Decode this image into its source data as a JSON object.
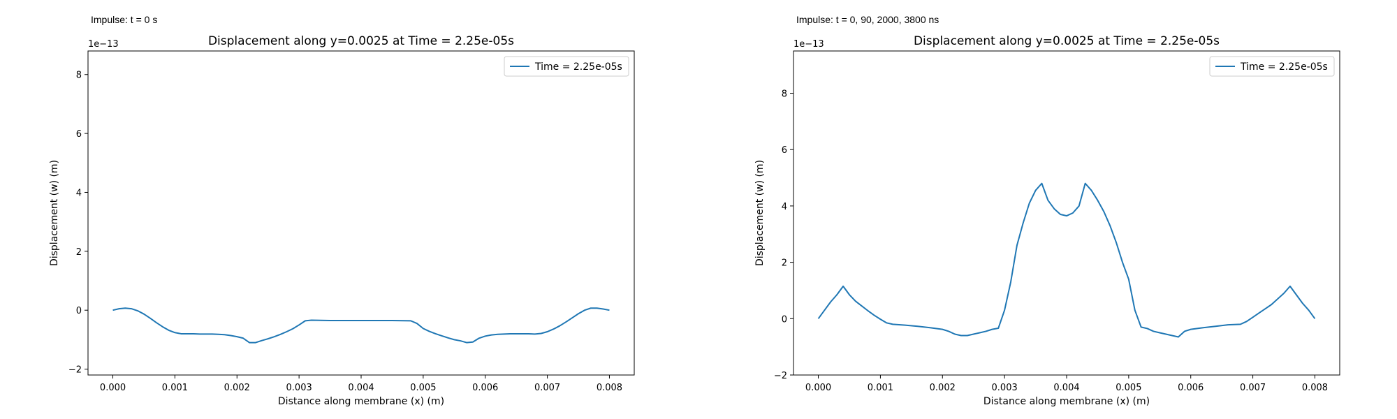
{
  "chart_data": [
    {
      "type": "line",
      "note": "Impulse: t = 0 s",
      "title": "Displacement along y=0.0025 at Time = 2.25e-05s",
      "xlabel": "Distance along membrane (x) (m)",
      "ylabel": "Displacement (w) (m)",
      "offset_text": "1e−13",
      "xlim": [
        -0.0004,
        0.0084
      ],
      "ylim": [
        -2.2,
        8.8
      ],
      "x_ticks": [
        "0.000",
        "0.001",
        "0.002",
        "0.003",
        "0.004",
        "0.005",
        "0.006",
        "0.007",
        "0.008"
      ],
      "y_ticks": [
        "−2",
        "0",
        "2",
        "4",
        "6",
        "8"
      ],
      "grid": false,
      "legend_position": "top-right",
      "series": [
        {
          "name": "Time = 2.25e-05s",
          "color": "#1f77b4",
          "x": [
            0.0,
            0.0001,
            0.0002,
            0.0003,
            0.0004,
            0.0005,
            0.0006,
            0.0007,
            0.0008,
            0.0009,
            0.001,
            0.0011,
            0.0012,
            0.0013,
            0.0014,
            0.0015,
            0.0016,
            0.0017,
            0.0018,
            0.0019,
            0.002,
            0.0021,
            0.0022,
            0.0023,
            0.0024,
            0.0025,
            0.0026,
            0.0027,
            0.0028,
            0.0029,
            0.003,
            0.0031,
            0.0032,
            0.0035,
            0.004,
            0.0045,
            0.0048,
            0.0049,
            0.005,
            0.0051,
            0.0052,
            0.0053,
            0.0054,
            0.0055,
            0.0056,
            0.0057,
            0.0058,
            0.0059,
            0.006,
            0.0061,
            0.0062,
            0.0063,
            0.0064,
            0.0065,
            0.0066,
            0.0067,
            0.0068,
            0.0069,
            0.007,
            0.0071,
            0.0072,
            0.0073,
            0.0074,
            0.0075,
            0.0076,
            0.0077,
            0.0078,
            0.0079,
            0.008
          ],
          "y": [
            0.0,
            0.05,
            0.07,
            0.05,
            -0.02,
            -0.13,
            -0.27,
            -0.42,
            -0.56,
            -0.68,
            -0.76,
            -0.8,
            -0.8,
            -0.8,
            -0.81,
            -0.81,
            -0.81,
            -0.82,
            -0.83,
            -0.86,
            -0.9,
            -0.95,
            -1.1,
            -1.1,
            -1.03,
            -0.97,
            -0.9,
            -0.82,
            -0.73,
            -0.63,
            -0.5,
            -0.36,
            -0.34,
            -0.35,
            -0.35,
            -0.35,
            -0.36,
            -0.45,
            -0.62,
            -0.72,
            -0.8,
            -0.87,
            -0.94,
            -1.0,
            -1.04,
            -1.1,
            -1.08,
            -0.95,
            -0.88,
            -0.84,
            -0.82,
            -0.81,
            -0.8,
            -0.8,
            -0.8,
            -0.8,
            -0.81,
            -0.79,
            -0.73,
            -0.64,
            -0.53,
            -0.4,
            -0.26,
            -0.12,
            0.0,
            0.07,
            0.07,
            0.04,
            0.0
          ]
        }
      ]
    },
    {
      "type": "line",
      "note": "Impulse: t = 0, 90, 2000, 3800 ns",
      "title": "Displacement along y=0.0025 at Time = 2.25e-05s",
      "xlabel": "Distance along membrane (x) (m)",
      "ylabel": "Displacement (w) (m)",
      "offset_text": "1e−13",
      "xlim": [
        -0.0004,
        0.0084
      ],
      "ylim": [
        -2.0,
        9.5
      ],
      "x_ticks": [
        "0.000",
        "0.001",
        "0.002",
        "0.003",
        "0.004",
        "0.005",
        "0.006",
        "0.007",
        "0.008"
      ],
      "y_ticks": [
        "−2",
        "0",
        "2",
        "4",
        "6",
        "8"
      ],
      "grid": false,
      "legend_position": "top-right",
      "series": [
        {
          "name": "Time = 2.25e-05s",
          "color": "#1f77b4",
          "x": [
            0.0,
            0.0001,
            0.0002,
            0.0003,
            0.0004,
            0.0005,
            0.0006,
            0.0007,
            0.0008,
            0.0009,
            0.001,
            0.0011,
            0.0012,
            0.0014,
            0.0016,
            0.0018,
            0.002,
            0.0021,
            0.0022,
            0.0023,
            0.0024,
            0.0025,
            0.0026,
            0.0027,
            0.0028,
            0.0029,
            0.003,
            0.0031,
            0.0032,
            0.0033,
            0.0034,
            0.0035,
            0.0036,
            0.0037,
            0.0038,
            0.0039,
            0.004,
            0.0041,
            0.0042,
            0.0043,
            0.0044,
            0.0045,
            0.0046,
            0.0047,
            0.0048,
            0.0049,
            0.005,
            0.0051,
            0.0052,
            0.0053,
            0.0054,
            0.0055,
            0.0056,
            0.0057,
            0.0058,
            0.0059,
            0.006,
            0.0062,
            0.0064,
            0.0066,
            0.0068,
            0.0069,
            0.007,
            0.0071,
            0.0072,
            0.0073,
            0.0074,
            0.0075,
            0.0076,
            0.0077,
            0.0078,
            0.0079,
            0.008
          ],
          "y": [
            0.0,
            0.3,
            0.6,
            0.85,
            1.15,
            0.85,
            0.62,
            0.45,
            0.28,
            0.12,
            -0.02,
            -0.15,
            -0.2,
            -0.23,
            -0.27,
            -0.32,
            -0.38,
            -0.45,
            -0.55,
            -0.6,
            -0.6,
            -0.55,
            -0.5,
            -0.45,
            -0.38,
            -0.34,
            0.3,
            1.3,
            2.6,
            3.4,
            4.1,
            4.55,
            4.8,
            4.2,
            3.9,
            3.7,
            3.65,
            3.75,
            4.0,
            4.8,
            4.55,
            4.2,
            3.8,
            3.3,
            2.7,
            2.0,
            1.4,
            0.3,
            -0.3,
            -0.35,
            -0.45,
            -0.5,
            -0.55,
            -0.6,
            -0.65,
            -0.45,
            -0.38,
            -0.32,
            -0.27,
            -0.22,
            -0.2,
            -0.1,
            0.05,
            0.2,
            0.35,
            0.5,
            0.7,
            0.9,
            1.15,
            0.85,
            0.55,
            0.3,
            0.0
          ]
        }
      ]
    }
  ]
}
